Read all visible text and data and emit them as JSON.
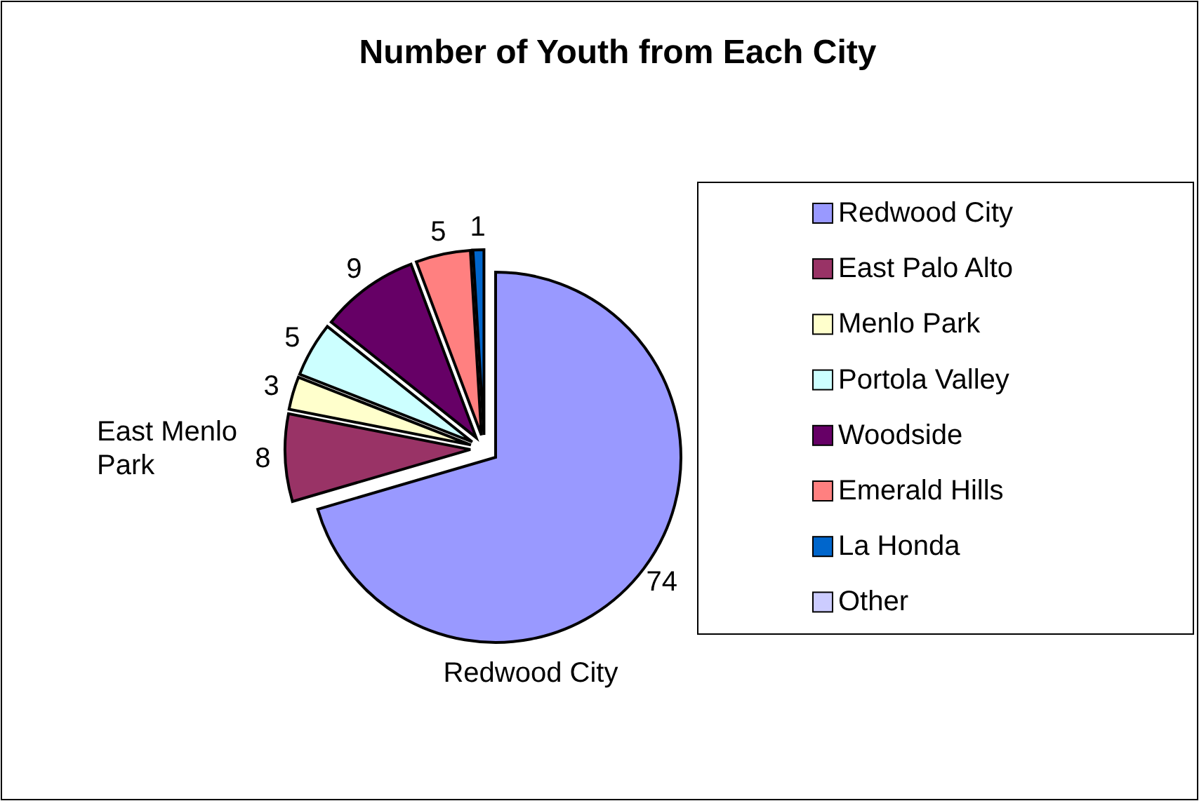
{
  "chart_data": {
    "type": "pie",
    "title": "Number of Youth from Each City",
    "categories": [
      "Redwood City",
      "East Palo Alto",
      "Menlo Park",
      "Portola Valley",
      "Woodside",
      "Emerald Hills",
      "La Honda",
      "Other"
    ],
    "values": [
      74,
      8,
      3,
      5,
      9,
      5,
      1,
      0
    ],
    "value_labels": [
      "74",
      "8",
      "3",
      "5",
      "9",
      "5",
      "1",
      null
    ],
    "colors": [
      "#9999ff",
      "#993366",
      "#ffffcc",
      "#ccffff",
      "#660066",
      "#ff8080",
      "#0066cc",
      "#ccccff"
    ],
    "legend": "right",
    "annotations": [
      "East Menlo Park",
      "Redwood City"
    ]
  }
}
